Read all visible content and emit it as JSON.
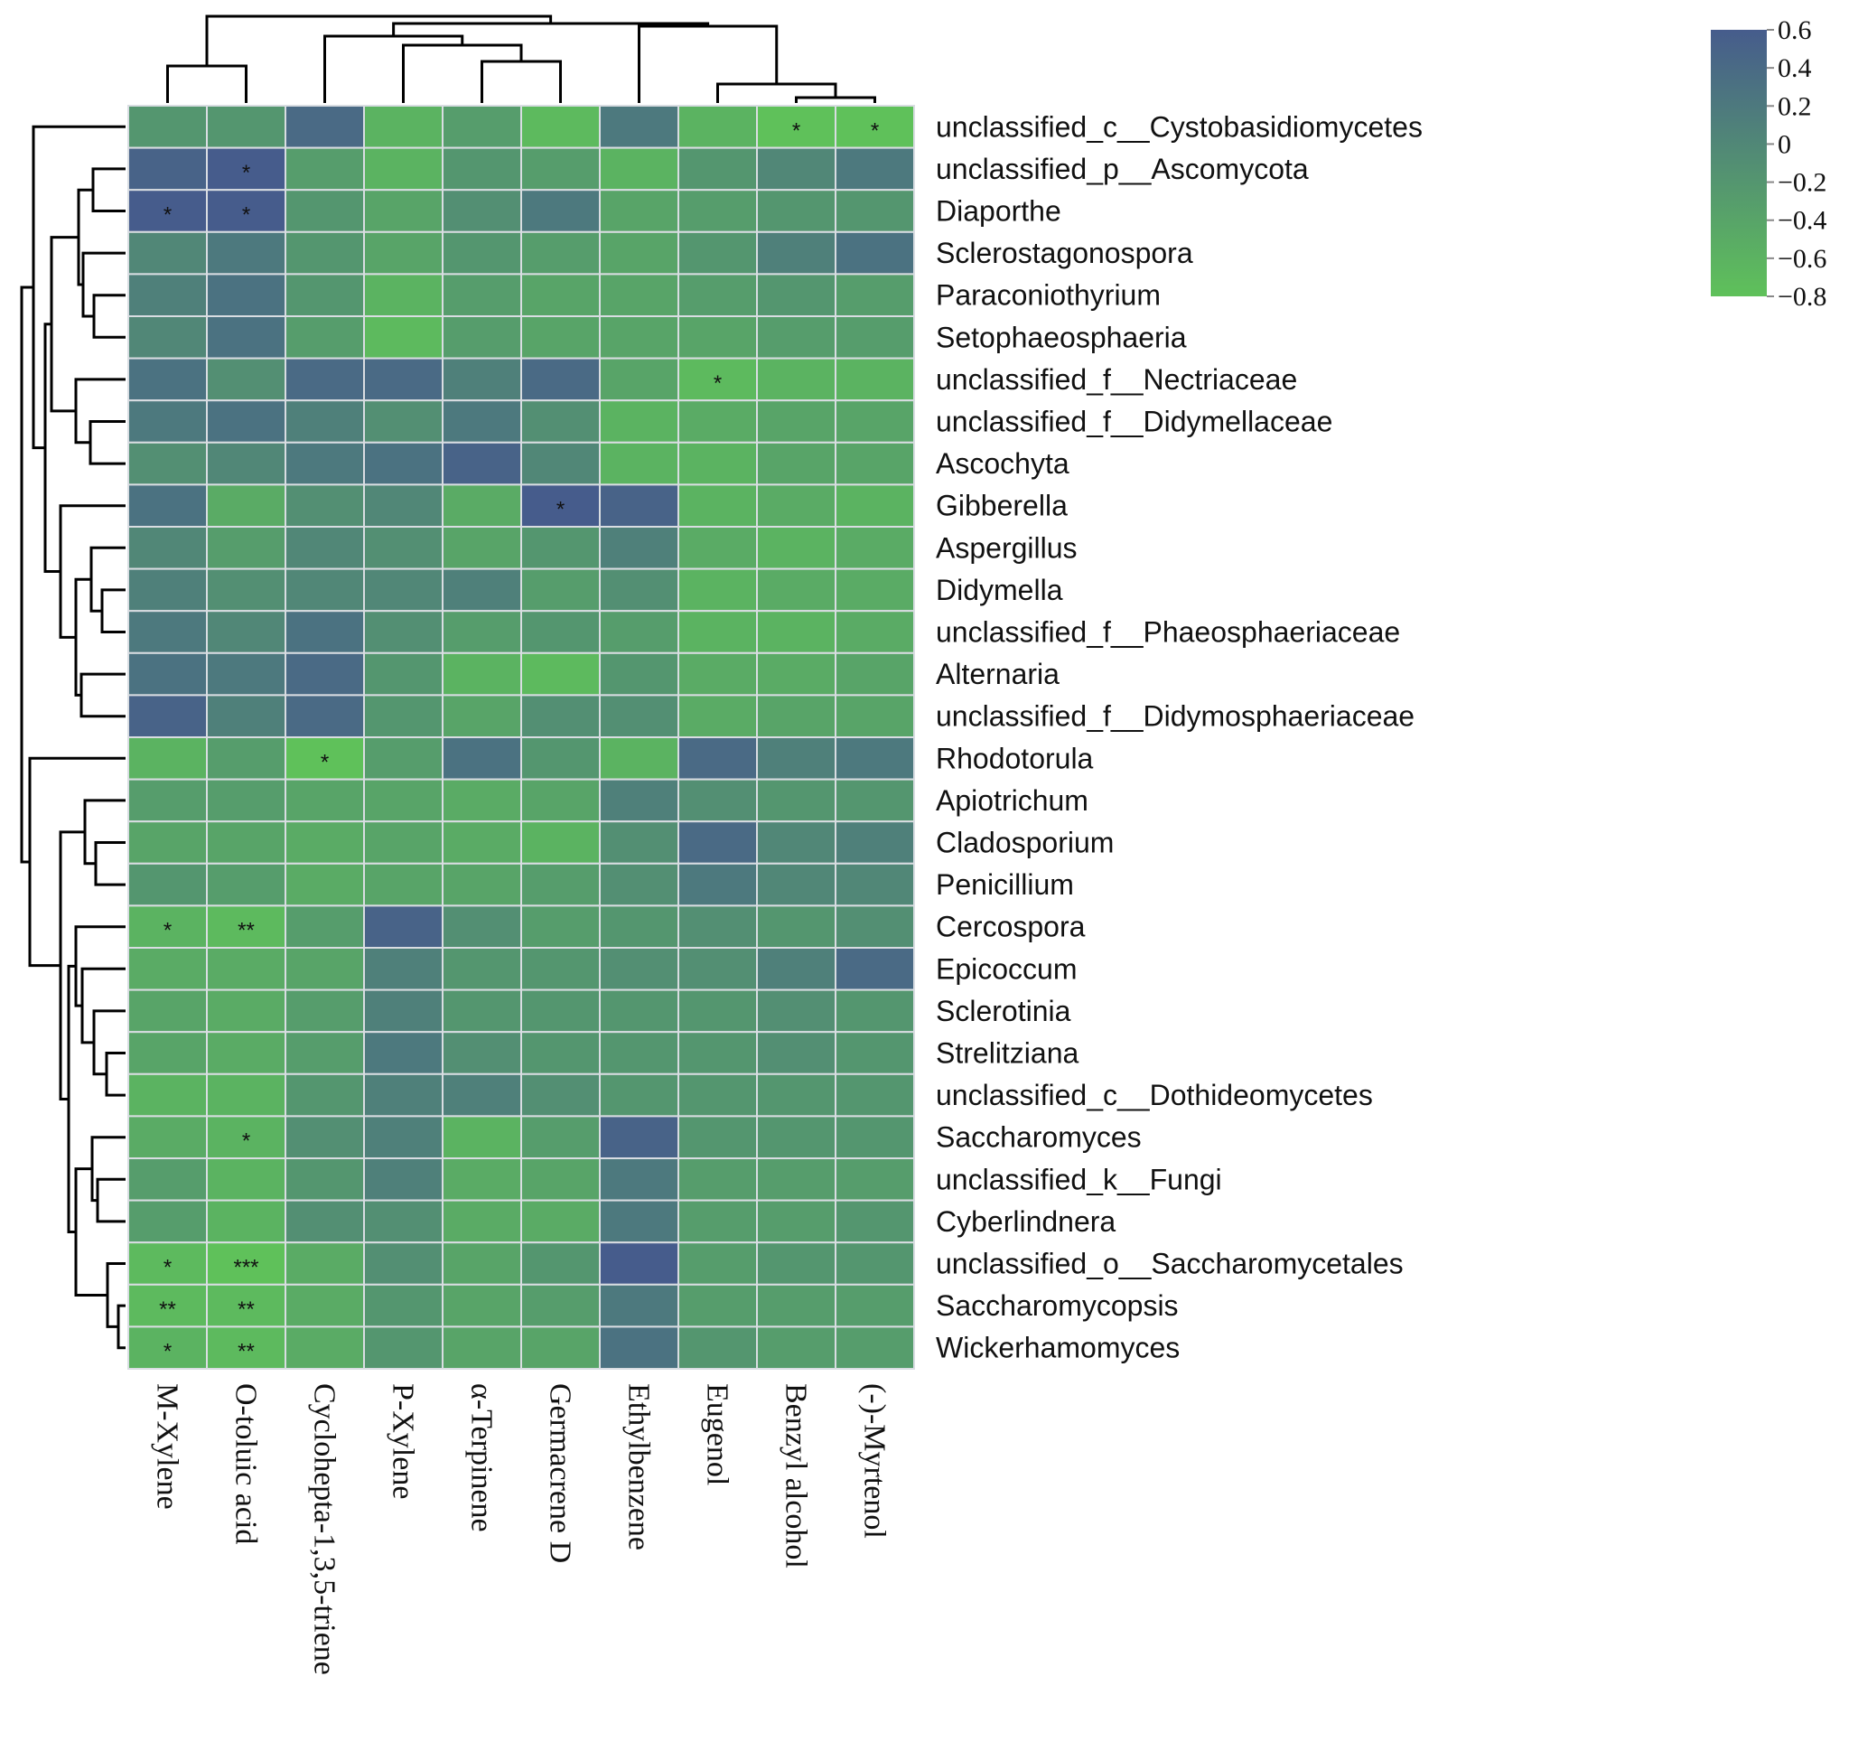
{
  "chart_data": {
    "type": "heatmap",
    "title": "",
    "columns": [
      "M-Xylene",
      "O-toluic acid",
      "Cyclohepta-1,3,5-triene",
      "P-Xylene",
      "α-Terpinene",
      "Germacrene D",
      "Ethylbenzene",
      "Eugenol",
      "Benzyl alcohol",
      "(-)-Myrtenol"
    ],
    "rows": [
      "unclassified_c__Cystobasidiomycetes",
      "unclassified_p__Ascomycota",
      "Diaporthe",
      "Sclerostagonospora",
      "Paraconiothyrium",
      "Setophaeosphaeria",
      "unclassified_f__Nectriaceae",
      "unclassified_f__Didymellaceae",
      "Ascochyta",
      "Gibberella",
      "Aspergillus",
      "Didymella",
      "unclassified_f__Phaeosphaeriaceae",
      "Alternaria",
      "unclassified_f__Didymosphaeriaceae",
      "Rhodotorula",
      "Apiotrichum",
      "Cladosporium",
      "Penicillium",
      "Cercospora",
      "Epicoccum",
      "Sclerotinia",
      "Strelitziana",
      "unclassified_c__Dothideomycetes",
      "Saccharomyces",
      "unclassified_k__Fungi",
      "Cyberlindnera",
      "unclassified_o__Saccharomycetales",
      "Saccharomycopsis",
      "Wickerhamomyces"
    ],
    "values": [
      [
        -0.2,
        -0.2,
        0.4,
        -0.6,
        -0.3,
        -0.7,
        0.2,
        -0.6,
        -0.8,
        -0.8
      ],
      [
        0.5,
        0.6,
        -0.3,
        -0.6,
        -0.2,
        -0.3,
        -0.6,
        -0.2,
        0.0,
        0.2
      ],
      [
        0.6,
        0.6,
        -0.2,
        -0.4,
        -0.1,
        0.2,
        -0.4,
        -0.3,
        -0.2,
        -0.2
      ],
      [
        0.0,
        0.2,
        -0.2,
        -0.4,
        -0.2,
        -0.3,
        -0.4,
        -0.2,
        0.1,
        0.3
      ],
      [
        0.1,
        0.3,
        -0.2,
        -0.6,
        -0.3,
        -0.4,
        -0.4,
        -0.3,
        -0.2,
        -0.3
      ],
      [
        0.0,
        0.3,
        -0.3,
        -0.7,
        -0.3,
        -0.4,
        -0.4,
        -0.4,
        -0.3,
        -0.3
      ],
      [
        0.3,
        -0.1,
        0.4,
        0.4,
        0.1,
        0.4,
        -0.4,
        -0.7,
        -0.6,
        -0.6
      ],
      [
        0.2,
        0.3,
        0.1,
        -0.1,
        0.2,
        -0.1,
        -0.6,
        -0.5,
        -0.4,
        -0.4
      ],
      [
        -0.1,
        0.0,
        0.2,
        0.3,
        0.5,
        0.0,
        -0.6,
        -0.6,
        -0.4,
        -0.4
      ],
      [
        0.3,
        -0.5,
        -0.1,
        0.0,
        -0.5,
        0.6,
        0.5,
        -0.6,
        -0.5,
        -0.6
      ],
      [
        0.0,
        -0.3,
        0.0,
        -0.1,
        -0.4,
        -0.2,
        0.1,
        -0.5,
        -0.6,
        -0.5
      ],
      [
        0.1,
        -0.1,
        0.0,
        0.0,
        0.1,
        -0.3,
        -0.1,
        -0.6,
        -0.5,
        -0.5
      ],
      [
        0.2,
        0.0,
        0.3,
        -0.1,
        -0.3,
        -0.2,
        -0.3,
        -0.6,
        -0.6,
        -0.5
      ],
      [
        0.3,
        0.2,
        0.4,
        -0.2,
        -0.6,
        -0.7,
        -0.2,
        -0.5,
        -0.5,
        -0.4
      ],
      [
        0.5,
        0.1,
        0.4,
        -0.2,
        -0.4,
        -0.1,
        -0.1,
        -0.5,
        -0.4,
        -0.4
      ],
      [
        -0.6,
        -0.3,
        -0.8,
        -0.3,
        0.3,
        -0.2,
        -0.6,
        0.4,
        0.1,
        0.2
      ],
      [
        -0.3,
        -0.3,
        -0.4,
        -0.4,
        -0.5,
        -0.4,
        0.1,
        -0.1,
        -0.2,
        -0.2
      ],
      [
        -0.4,
        -0.4,
        -0.5,
        -0.4,
        -0.5,
        -0.6,
        -0.1,
        0.4,
        0.0,
        0.1
      ],
      [
        -0.2,
        -0.3,
        -0.5,
        -0.4,
        -0.4,
        -0.3,
        -0.1,
        0.2,
        0.0,
        0.0
      ],
      [
        -0.6,
        -0.7,
        -0.3,
        0.5,
        -0.1,
        -0.3,
        -0.2,
        -0.1,
        -0.2,
        -0.1
      ],
      [
        -0.5,
        -0.5,
        -0.4,
        0.1,
        -0.2,
        -0.2,
        -0.1,
        -0.1,
        0.1,
        0.4
      ],
      [
        -0.4,
        -0.5,
        -0.3,
        0.1,
        -0.2,
        -0.2,
        -0.2,
        -0.2,
        -0.1,
        -0.2
      ],
      [
        -0.4,
        -0.5,
        -0.3,
        0.2,
        -0.1,
        -0.2,
        -0.2,
        -0.2,
        -0.1,
        -0.2
      ],
      [
        -0.6,
        -0.6,
        -0.2,
        0.1,
        0.1,
        -0.1,
        -0.2,
        -0.2,
        -0.2,
        -0.2
      ],
      [
        -0.5,
        -0.6,
        -0.1,
        0.1,
        -0.6,
        -0.3,
        0.5,
        -0.2,
        -0.2,
        -0.2
      ],
      [
        -0.3,
        -0.6,
        -0.2,
        0.1,
        -0.5,
        -0.4,
        0.2,
        -0.3,
        -0.3,
        -0.3
      ],
      [
        -0.3,
        -0.6,
        -0.1,
        -0.1,
        -0.5,
        -0.5,
        0.2,
        -0.3,
        -0.3,
        -0.2
      ],
      [
        -0.7,
        -0.8,
        -0.5,
        -0.1,
        -0.4,
        -0.2,
        0.6,
        -0.3,
        -0.2,
        -0.2
      ],
      [
        -0.7,
        -0.7,
        -0.5,
        -0.2,
        -0.4,
        -0.3,
        0.2,
        -0.3,
        -0.3,
        -0.3
      ],
      [
        -0.6,
        -0.7,
        -0.5,
        -0.2,
        -0.4,
        -0.4,
        0.3,
        -0.2,
        -0.3,
        -0.3
      ]
    ],
    "significance": [
      {
        "row": 0,
        "col": 8,
        "mark": "*"
      },
      {
        "row": 0,
        "col": 9,
        "mark": "*"
      },
      {
        "row": 1,
        "col": 1,
        "mark": "*"
      },
      {
        "row": 2,
        "col": 0,
        "mark": "*"
      },
      {
        "row": 2,
        "col": 1,
        "mark": "*"
      },
      {
        "row": 6,
        "col": 7,
        "mark": "*"
      },
      {
        "row": 9,
        "col": 5,
        "mark": "*"
      },
      {
        "row": 15,
        "col": 2,
        "mark": "*"
      },
      {
        "row": 19,
        "col": 0,
        "mark": "*"
      },
      {
        "row": 19,
        "col": 1,
        "mark": "**"
      },
      {
        "row": 24,
        "col": 1,
        "mark": "*"
      },
      {
        "row": 27,
        "col": 0,
        "mark": "*"
      },
      {
        "row": 27,
        "col": 1,
        "mark": "***"
      },
      {
        "row": 28,
        "col": 0,
        "mark": "**"
      },
      {
        "row": 28,
        "col": 1,
        "mark": "**"
      },
      {
        "row": 29,
        "col": 0,
        "mark": "*"
      },
      {
        "row": 29,
        "col": 1,
        "mark": "**"
      }
    ],
    "color_scale": {
      "min": -0.8,
      "max": 0.6,
      "low_color": "#5fc15a",
      "high_color": "#465c8c",
      "ticks": [
        "0.6",
        "0.4",
        "0.2",
        "0",
        "−0.2",
        "−0.4",
        "−0.6",
        "−0.8"
      ]
    },
    "col_dendrogram": true,
    "row_dendrogram": true,
    "legend_position": "top-right"
  }
}
